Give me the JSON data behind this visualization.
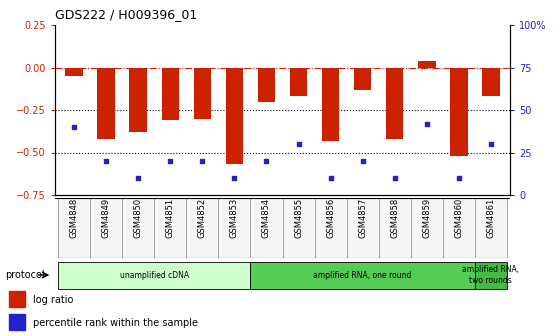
{
  "title": "GDS222 / H009396_01",
  "samples": [
    "GSM4848",
    "GSM4849",
    "GSM4850",
    "GSM4851",
    "GSM4852",
    "GSM4853",
    "GSM4854",
    "GSM4855",
    "GSM4856",
    "GSM4857",
    "GSM4858",
    "GSM4859",
    "GSM4860",
    "GSM4861"
  ],
  "log_ratio": [
    -0.05,
    -0.42,
    -0.38,
    -0.31,
    -0.3,
    -0.57,
    -0.2,
    -0.17,
    -0.43,
    -0.13,
    -0.42,
    0.04,
    -0.52,
    -0.17
  ],
  "pct_right": [
    40,
    20,
    10,
    20,
    20,
    10,
    20,
    30,
    10,
    20,
    10,
    42,
    10,
    30
  ],
  "bar_color": "#cc2200",
  "dot_color": "#2222cc",
  "bg_color": "#ffffff",
  "ylim_left": [
    -0.75,
    0.25
  ],
  "ylim_right": [
    0,
    100
  ],
  "yticks_left": [
    -0.75,
    -0.5,
    -0.25,
    0,
    0.25
  ],
  "yticks_right": [
    0,
    25,
    50,
    75,
    100
  ],
  "dotted_lines": [
    -0.25,
    -0.5
  ],
  "protocol_groups": [
    {
      "label": "unamplified cDNA",
      "start": 0,
      "end": 5,
      "color": "#ccffcc"
    },
    {
      "label": "amplified RNA, one round",
      "start": 6,
      "end": 12,
      "color": "#55cc55"
    },
    {
      "label": "amplified RNA,\ntwo rounds",
      "start": 13,
      "end": 13,
      "color": "#44bb44"
    }
  ],
  "legend_items": [
    {
      "color": "#cc2200",
      "label": "log ratio"
    },
    {
      "color": "#2222cc",
      "label": "percentile rank within the sample"
    }
  ],
  "protocol_label": "protocol"
}
